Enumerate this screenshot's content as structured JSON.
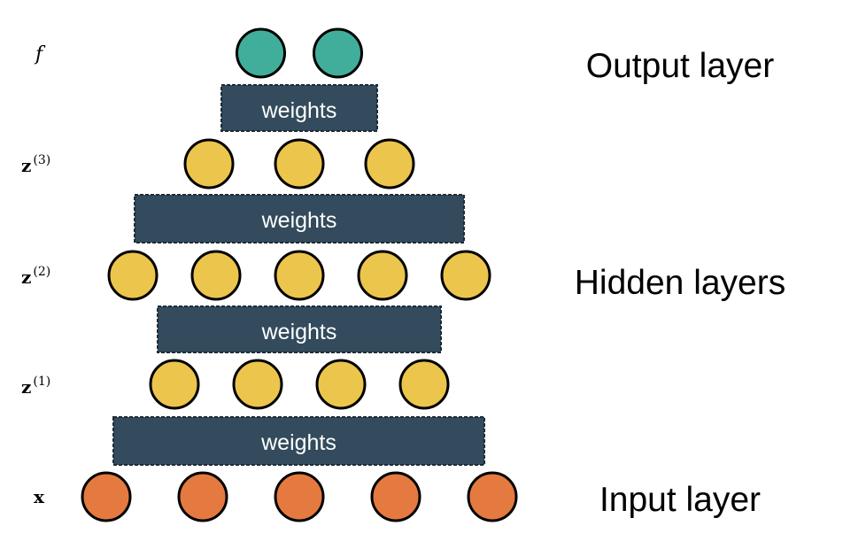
{
  "colors": {
    "output_node": "#41ae9b",
    "hidden_node": "#ecc54c",
    "input_node": "#e47a40",
    "weights_box": "#334b5c",
    "weights_text": "#ffffff"
  },
  "rows": [
    {
      "id": "output",
      "label_base": "f",
      "label_sup": "",
      "label_style": "italic",
      "node_count": 2,
      "color_key": "output_node"
    },
    {
      "id": "z3",
      "label_base": "z",
      "label_sup": "(3)",
      "label_style": "bold",
      "node_count": 3,
      "color_key": "hidden_node"
    },
    {
      "id": "z2",
      "label_base": "z",
      "label_sup": "(2)",
      "label_style": "bold",
      "node_count": 5,
      "color_key": "hidden_node"
    },
    {
      "id": "z1",
      "label_base": "z",
      "label_sup": "(1)",
      "label_style": "bold",
      "node_count": 4,
      "color_key": "hidden_node"
    },
    {
      "id": "input",
      "label_base": "x",
      "label_sup": "",
      "label_style": "bold",
      "node_count": 5,
      "color_key": "input_node"
    }
  ],
  "weights": [
    {
      "id": "w-output",
      "label": "weights"
    },
    {
      "id": "w-z3",
      "label": "weights"
    },
    {
      "id": "w-z2",
      "label": "weights"
    },
    {
      "id": "w-z1",
      "label": "weights"
    }
  ],
  "layer_labels": {
    "output": "Output layer",
    "hidden": "Hidden layers",
    "input": "Input layer"
  }
}
